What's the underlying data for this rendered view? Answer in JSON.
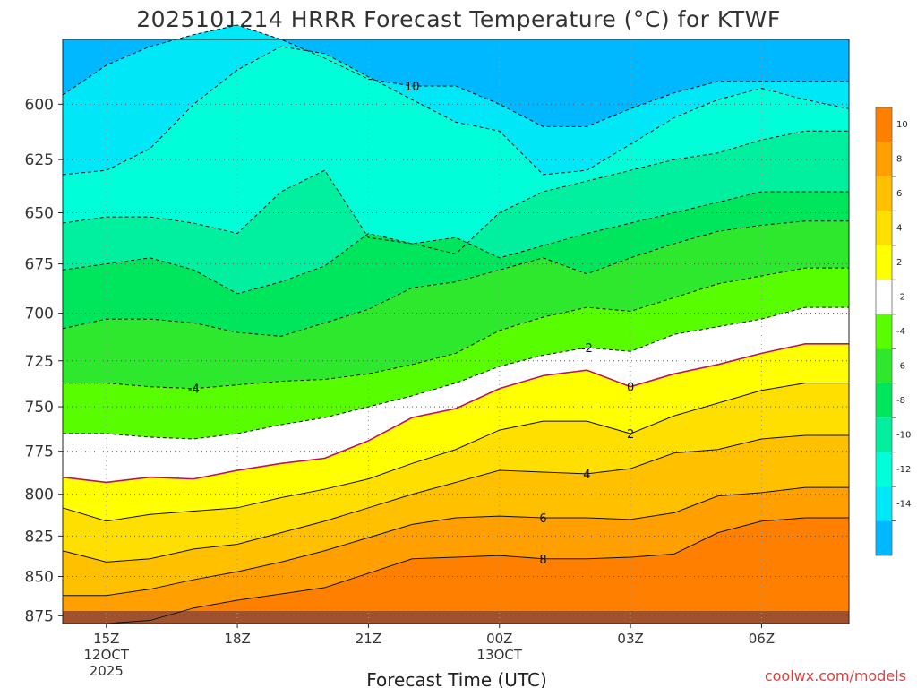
{
  "chart_data": {
    "type": "heatmap",
    "title": "2025101214 HRRR Forecast Temperature (°C) for KTWF",
    "xlabel": "Forecast Time (UTC)",
    "ylabel": "",
    "credit": "coolwx.com/models",
    "x_ticks": [
      {
        "label": "15Z",
        "sub": [
          "12OCT",
          "2025"
        ],
        "hour": 0
      },
      {
        "label": "18Z",
        "sub": [],
        "hour": 3
      },
      {
        "label": "21Z",
        "sub": [],
        "hour": 6
      },
      {
        "label": "00Z",
        "sub": [
          "13OCT"
        ],
        "hour": 9
      },
      {
        "label": "03Z",
        "sub": [],
        "hour": 12
      },
      {
        "label": "06Z",
        "sub": [],
        "hour": 15
      }
    ],
    "xlim": [
      -1,
      17
    ],
    "y_ticks": [
      600,
      625,
      650,
      675,
      700,
      725,
      750,
      775,
      800,
      825,
      850,
      875
    ],
    "ylim": [
      880,
      572
    ],
    "y_scale": "log",
    "grid": true,
    "colorbar": {
      "placement": "right",
      "levels": [
        10,
        8,
        6,
        4,
        2,
        -2,
        -4,
        -6,
        -8,
        -10,
        -12,
        -14
      ],
      "colors": [
        "#ff8000",
        "#ffa000",
        "#ffc000",
        "#ffdf00",
        "#ffff00",
        "#ffffff",
        "#58fe00",
        "#2ee82e",
        "#00e65c",
        "#00f0a0",
        "#00ffd8",
        "#00e8f8",
        "#00b8ff"
      ]
    },
    "ground_color": "#a0522d",
    "x_hours": [
      -1,
      0,
      1,
      2,
      3,
      4,
      5,
      6,
      7,
      8,
      9,
      10,
      11,
      12,
      13,
      14,
      15,
      16,
      17
    ],
    "contours": [
      {
        "level": 10,
        "label": "10",
        "label_hour": 7.0,
        "dashed": true,
        "values": [
          596,
          583,
          575,
          570,
          566,
          572,
          580,
          589,
          592,
          592,
          600,
          610,
          610,
          602,
          595,
          590,
          590,
          590,
          590
        ]
      },
      {
        "level": -12,
        "label": "",
        "dashed": true,
        "values": [
          632,
          630,
          620,
          600,
          585,
          575,
          578,
          588,
          598,
          608,
          612,
          632,
          630,
          618,
          606,
          598,
          593,
          598,
          602
        ]
      },
      {
        "level": -10,
        "label": "",
        "dashed": true,
        "values": [
          655,
          652,
          652,
          655,
          660,
          640,
          630,
          662,
          665,
          670,
          650,
          640,
          635,
          630,
          625,
          622,
          616,
          612,
          612
        ]
      },
      {
        "level": -8,
        "label": "",
        "dashed": true,
        "values": [
          678,
          675,
          672,
          678,
          690,
          684,
          676,
          660,
          665,
          662,
          672,
          666,
          660,
          655,
          650,
          645,
          640,
          640,
          640
        ]
      },
      {
        "level": -6,
        "label": "",
        "dashed": true,
        "values": [
          708,
          703,
          703,
          705,
          710,
          712,
          705,
          698,
          687,
          684,
          678,
          672,
          680,
          672,
          665,
          659,
          656,
          654,
          654
        ]
      },
      {
        "level": -4,
        "label": "-4",
        "label_hour": 2.0,
        "dashed": true,
        "values": [
          737,
          737,
          739,
          740,
          738,
          736,
          735,
          732,
          727,
          721,
          709,
          702,
          697,
          699,
          692,
          685,
          681,
          677,
          677
        ]
      },
      {
        "level": -2,
        "label": "-2",
        "label_hour": 11.0,
        "dashed": true,
        "values": [
          765,
          765,
          767,
          768,
          765,
          760,
          756,
          750,
          744,
          737,
          728,
          722,
          718,
          720,
          711,
          707,
          703,
          697,
          697
        ]
      },
      {
        "level": 0,
        "label": "0",
        "label_hour": 12.0,
        "dashed": false,
        "color": "#c0105e",
        "values": [
          790,
          793,
          790,
          791,
          786,
          782,
          779,
          769,
          756,
          751,
          740,
          733,
          730,
          739,
          732,
          727,
          721,
          716,
          716
        ]
      },
      {
        "level": 2,
        "label": "2",
        "label_hour": 12.0,
        "dashed": false,
        "values": [
          808,
          816,
          812,
          810,
          808,
          802,
          797,
          791,
          782,
          774,
          763,
          758,
          758,
          765,
          755,
          748,
          741,
          737,
          737
        ]
      },
      {
        "level": 4,
        "label": "4",
        "label_hour": 11.0,
        "dashed": false,
        "values": [
          834,
          841,
          839,
          833,
          830,
          823,
          816,
          808,
          800,
          793,
          786,
          787,
          788,
          785,
          776,
          774,
          768,
          766,
          766
        ]
      },
      {
        "level": 6,
        "label": "6",
        "label_hour": 10.0,
        "dashed": false,
        "values": [
          862,
          862,
          858,
          852,
          847,
          841,
          834,
          826,
          818,
          814,
          813,
          814,
          814,
          815,
          811,
          801,
          799,
          796,
          796
        ]
      },
      {
        "level": 8,
        "label": "8",
        "label_hour": 10.0,
        "dashed": false,
        "values": [
          880,
          880,
          878,
          870,
          865,
          861,
          857,
          848,
          839,
          838,
          837,
          839,
          839,
          838,
          836,
          823,
          816,
          814,
          814
        ]
      }
    ]
  }
}
